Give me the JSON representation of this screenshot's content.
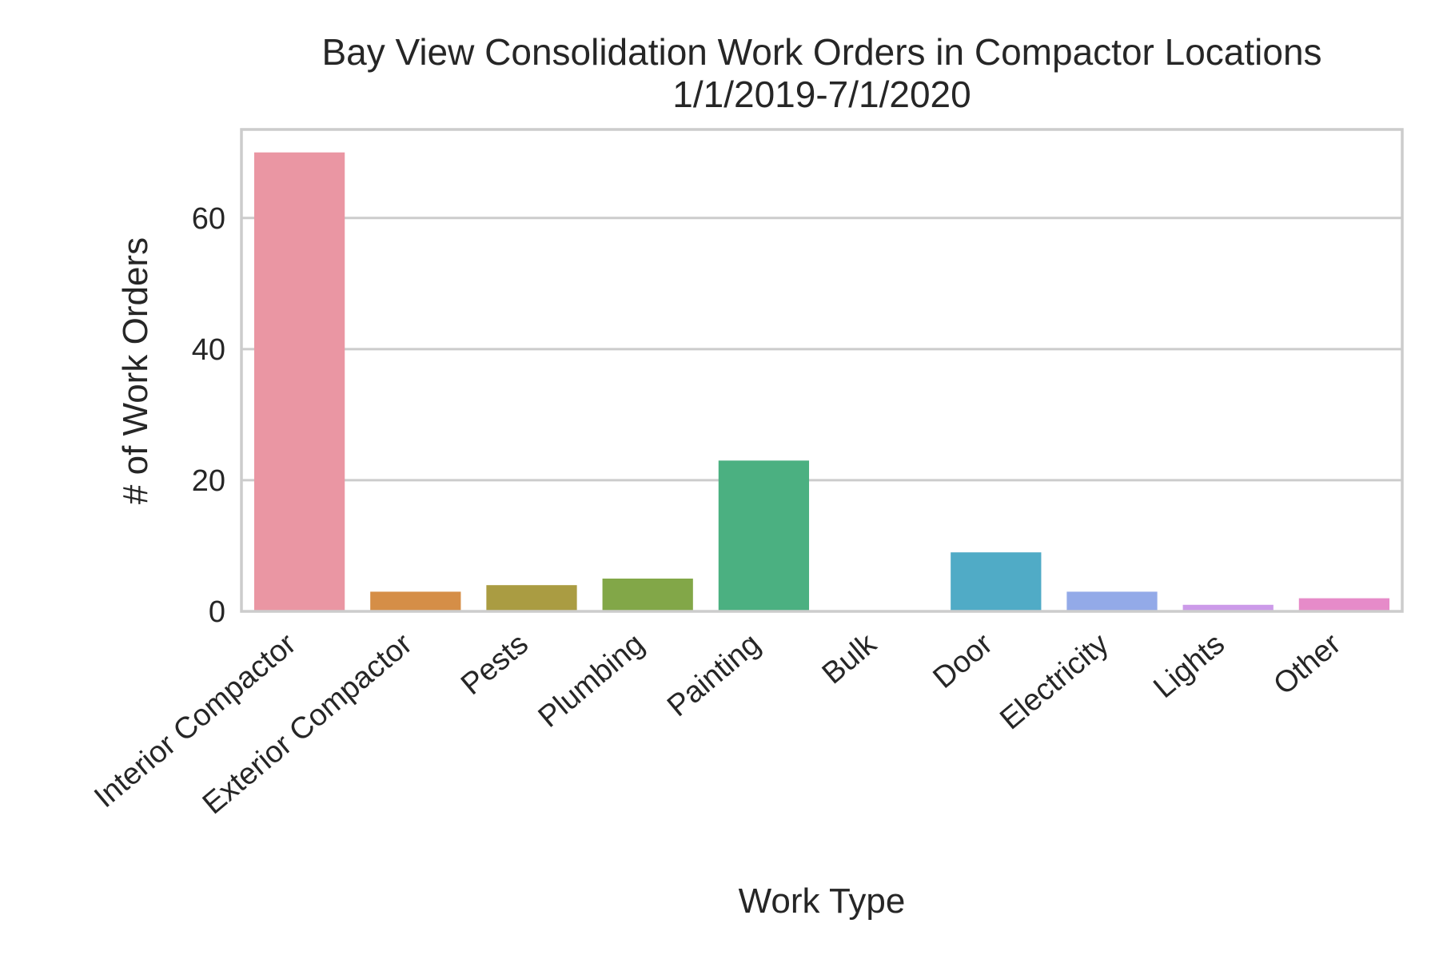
{
  "chart_data": {
    "type": "bar",
    "title": "Bay View Consolidation Work Orders in Compactor Locations",
    "subtitle": "1/1/2019-7/1/2020",
    "xlabel": "Work Type",
    "ylabel": "# of Work Orders",
    "categories": [
      "Interior Compactor",
      "Exterior Compactor",
      "Pests",
      "Plumbing",
      "Painting",
      "Bulk",
      "Door",
      "Electricity",
      "Lights",
      "Other"
    ],
    "values": [
      70,
      3,
      4,
      5,
      23,
      0,
      9,
      3,
      1,
      2
    ],
    "colors": [
      "#ea96a3",
      "#d58e47",
      "#aa9c42",
      "#82a748",
      "#4bb081",
      "#4fad9b",
      "#50abc6",
      "#93aae8",
      "#cc9ae9",
      "#e68bc9"
    ],
    "ylim": [
      0,
      73.5
    ],
    "yticks": [
      0,
      20,
      40,
      60
    ],
    "grid": true,
    "legend": "none"
  }
}
